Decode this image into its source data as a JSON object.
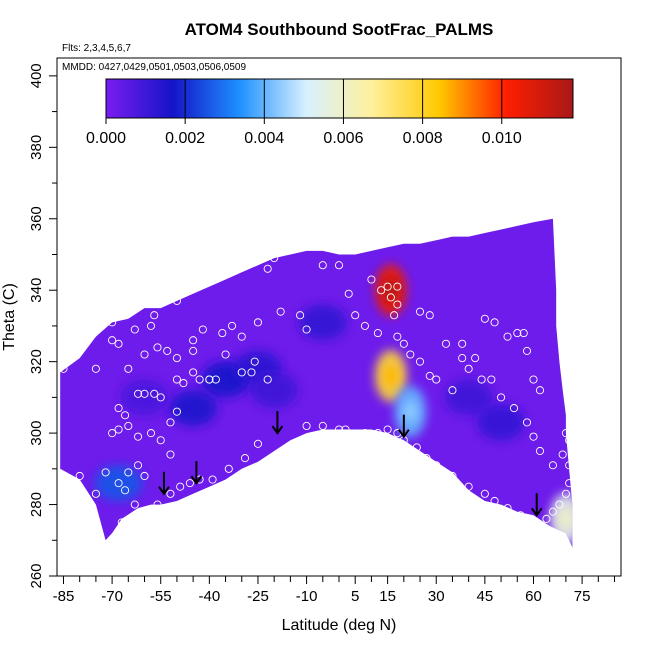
{
  "chart_data": {
    "type": "heatmap",
    "title": "ATOM4 Southbound SootFrac_PALMS",
    "annotations": [
      "Flts: 2,3,4,5,6,7",
      "MMDD: 0427,0429,0501,0503,0506,0509"
    ],
    "xlabel": "Latitude (deg N)",
    "ylabel": "Theta (C)",
    "xlim": [
      -87,
      87
    ],
    "ylim": [
      260,
      405
    ],
    "x_ticks": [
      -85,
      -70,
      -55,
      -40,
      -25,
      -10,
      5,
      15,
      30,
      45,
      60,
      75
    ],
    "x_tick_labels": [
      "-85",
      "-70",
      "-55",
      "-40",
      "-25",
      "-10",
      "5",
      "15",
      "30",
      "45",
      "60",
      "75"
    ],
    "y_ticks": [
      260,
      280,
      300,
      320,
      340,
      360,
      380,
      400
    ],
    "y_tick_labels": [
      "260",
      "280",
      "300",
      "320",
      "340",
      "360",
      "380",
      "400"
    ],
    "grid": false,
    "colorbar": {
      "range": [
        0,
        0.0118
      ],
      "ticks": [
        0.0,
        0.002,
        0.004,
        0.006,
        0.008,
        0.01
      ],
      "tick_labels": [
        "0.000",
        "0.002",
        "0.004",
        "0.006",
        "0.008",
        "0.010"
      ],
      "placement": "top",
      "colors": [
        "#7a1df0",
        "#1414c8",
        "#1e90ff",
        "#d8f0ff",
        "#fff09a",
        "#ffc800",
        "#ff1e00",
        "#a81818"
      ]
    },
    "background_value": 0.0002,
    "top_boundary": [
      [
        -86,
        317
      ],
      [
        -80,
        321
      ],
      [
        -75,
        327
      ],
      [
        -70,
        331
      ],
      [
        -65,
        332
      ],
      [
        -60,
        335
      ],
      [
        -55,
        335
      ],
      [
        -50,
        337
      ],
      [
        -45,
        339
      ],
      [
        -40,
        341
      ],
      [
        -35,
        343
      ],
      [
        -30,
        345
      ],
      [
        -25,
        347
      ],
      [
        -20,
        349
      ],
      [
        -15,
        350
      ],
      [
        -10,
        351
      ],
      [
        -5,
        351
      ],
      [
        0,
        350
      ],
      [
        5,
        350
      ],
      [
        10,
        351
      ],
      [
        15,
        352
      ],
      [
        20,
        353
      ],
      [
        25,
        353
      ],
      [
        30,
        354
      ],
      [
        35,
        355
      ],
      [
        40,
        355
      ],
      [
        45,
        356
      ],
      [
        50,
        357
      ],
      [
        55,
        358
      ],
      [
        60,
        359
      ],
      [
        66,
        360
      ],
      [
        67,
        340
      ],
      [
        67,
        330
      ],
      [
        68,
        320
      ],
      [
        69,
        312
      ],
      [
        70,
        305
      ],
      [
        70,
        300
      ],
      [
        71,
        290
      ],
      [
        72,
        280
      ],
      [
        72,
        276
      ],
      [
        72,
        268
      ]
    ],
    "bottom_boundary": [
      [
        -86,
        290
      ],
      [
        -80,
        287
      ],
      [
        -75,
        280
      ],
      [
        -72,
        270
      ],
      [
        -70,
        272
      ],
      [
        -67,
        276
      ],
      [
        -62,
        279
      ],
      [
        -58,
        280
      ],
      [
        -55,
        280
      ],
      [
        -50,
        281
      ],
      [
        -45,
        283
      ],
      [
        -40,
        285
      ],
      [
        -35,
        287
      ],
      [
        -30,
        290
      ],
      [
        -25,
        292
      ],
      [
        -20,
        295
      ],
      [
        -15,
        298
      ],
      [
        -10,
        300
      ],
      [
        -5,
        301
      ],
      [
        0,
        301
      ],
      [
        5,
        301
      ],
      [
        10,
        301
      ],
      [
        15,
        300
      ],
      [
        20,
        298
      ],
      [
        25,
        295
      ],
      [
        30,
        292
      ],
      [
        35,
        289
      ],
      [
        40,
        284
      ],
      [
        45,
        281
      ],
      [
        50,
        280
      ],
      [
        55,
        278
      ],
      [
        60,
        277
      ],
      [
        65,
        274
      ],
      [
        70,
        272
      ],
      [
        72,
        268
      ]
    ],
    "hotspots": [
      {
        "x": 16,
        "y": 340,
        "value": 0.0105
      },
      {
        "x": 16,
        "y": 316,
        "value": 0.0078
      },
      {
        "x": 22,
        "y": 306,
        "value": 0.004
      },
      {
        "x": 70,
        "y": 276,
        "value": 0.0055
      },
      {
        "x": -35,
        "y": 315,
        "value": 0.0016
      },
      {
        "x": -45,
        "y": 307,
        "value": 0.0015
      },
      {
        "x": -68,
        "y": 286,
        "value": 0.0026
      },
      {
        "x": -25,
        "y": 318,
        "value": 0.0013
      },
      {
        "x": -20,
        "y": 312,
        "value": 0.001
      },
      {
        "x": 40,
        "y": 310,
        "value": 0.001
      },
      {
        "x": 50,
        "y": 303,
        "value": 0.0012
      },
      {
        "x": -5,
        "y": 331,
        "value": 0.0012
      },
      {
        "x": -60,
        "y": 310,
        "value": 0.0008
      }
    ],
    "samples": [
      [
        -85,
        318
      ],
      [
        -75,
        318
      ],
      [
        -70,
        331
      ],
      [
        -70,
        326
      ],
      [
        -68,
        325
      ],
      [
        -63,
        329
      ],
      [
        -58,
        330
      ],
      [
        -57,
        333
      ],
      [
        -50,
        337
      ],
      [
        -45,
        326
      ],
      [
        -42,
        329
      ],
      [
        -36,
        328
      ],
      [
        -33,
        330
      ],
      [
        -30,
        327
      ],
      [
        -25,
        331
      ],
      [
        -20,
        349
      ],
      [
        -22,
        346
      ],
      [
        -65,
        318
      ],
      [
        -60,
        322
      ],
      [
        -56,
        324
      ],
      [
        -53,
        323
      ],
      [
        -50,
        321
      ],
      [
        -45,
        323
      ],
      [
        -40,
        315
      ],
      [
        -38,
        315
      ],
      [
        -35,
        322
      ],
      [
        -30,
        317
      ],
      [
        -27,
        317
      ],
      [
        -22,
        315
      ],
      [
        -26,
        320
      ],
      [
        -68,
        307
      ],
      [
        -66,
        305
      ],
      [
        -62,
        311
      ],
      [
        -60,
        311
      ],
      [
        -57,
        311
      ],
      [
        -55,
        310
      ],
      [
        -50,
        315
      ],
      [
        -48,
        314
      ],
      [
        -45,
        317
      ],
      [
        -43,
        315
      ],
      [
        -40,
        315
      ],
      [
        -52,
        303
      ],
      [
        -50,
        306
      ],
      [
        -70,
        300
      ],
      [
        -68,
        301
      ],
      [
        -65,
        302
      ],
      [
        -62,
        299
      ],
      [
        -58,
        300
      ],
      [
        -55,
        298
      ],
      [
        -52,
        294
      ],
      [
        -72,
        289
      ],
      [
        -68,
        286
      ],
      [
        -66,
        284
      ],
      [
        -63,
        280
      ],
      [
        -60,
        278
      ],
      [
        -56,
        280
      ],
      [
        -52,
        283
      ],
      [
        -49,
        285
      ],
      [
        -46,
        286
      ],
      [
        -43,
        287
      ],
      [
        -39,
        287
      ],
      [
        -34,
        290
      ],
      [
        -29,
        293
      ],
      [
        -25,
        297
      ],
      [
        -60,
        288
      ],
      [
        -62,
        291
      ],
      [
        -65,
        289
      ],
      [
        -67,
        275
      ],
      [
        -70,
        270
      ],
      [
        -75,
        283
      ],
      [
        -80,
        288
      ],
      [
        -18,
        334
      ],
      [
        -12,
        333
      ],
      [
        -10,
        329
      ],
      [
        -5,
        347
      ],
      [
        0,
        347
      ],
      [
        3,
        339
      ],
      [
        5,
        333
      ],
      [
        8,
        330
      ],
      [
        12,
        328
      ],
      [
        17,
        333
      ],
      [
        18,
        327
      ],
      [
        20,
        325
      ],
      [
        22,
        322
      ],
      [
        25,
        320
      ],
      [
        28,
        316
      ],
      [
        30,
        315
      ],
      [
        35,
        312
      ],
      [
        38,
        325
      ],
      [
        42,
        321
      ],
      [
        45,
        332
      ],
      [
        48,
        331
      ],
      [
        52,
        327
      ],
      [
        55,
        328
      ],
      [
        57,
        328
      ],
      [
        58,
        323
      ],
      [
        60,
        315
      ],
      [
        62,
        312
      ],
      [
        -10,
        302
      ],
      [
        -5,
        302
      ],
      [
        0,
        301
      ],
      [
        2,
        301
      ],
      [
        8,
        300
      ],
      [
        12,
        300
      ],
      [
        15,
        301
      ],
      [
        18,
        300
      ],
      [
        20,
        298
      ],
      [
        24,
        296
      ],
      [
        27,
        293
      ],
      [
        30,
        291
      ],
      [
        35,
        288
      ],
      [
        40,
        285
      ],
      [
        45,
        283
      ],
      [
        48,
        281
      ],
      [
        52,
        279
      ],
      [
        56,
        277
      ],
      [
        58,
        276
      ],
      [
        62,
        274
      ],
      [
        64,
        276
      ],
      [
        66,
        278
      ],
      [
        68,
        280
      ],
      [
        70,
        283
      ],
      [
        71,
        286
      ],
      [
        71,
        291
      ],
      [
        71,
        298
      ],
      [
        10,
        343
      ],
      [
        13,
        340
      ],
      [
        15,
        341
      ],
      [
        16,
        338
      ],
      [
        18,
        341
      ],
      [
        18,
        336
      ],
      [
        25,
        334
      ],
      [
        28,
        333
      ],
      [
        33,
        325
      ],
      [
        38,
        321
      ],
      [
        40,
        318
      ],
      [
        44,
        315
      ],
      [
        47,
        315
      ],
      [
        50,
        310
      ],
      [
        54,
        307
      ],
      [
        58,
        303
      ],
      [
        60,
        299
      ],
      [
        62,
        295
      ],
      [
        66,
        291
      ],
      [
        69,
        294
      ],
      [
        70,
        300
      ]
    ],
    "markers": [
      {
        "x": -54,
        "y": 283
      },
      {
        "x": -44,
        "y": 286
      },
      {
        "x": -19,
        "y": 300
      },
      {
        "x": 20,
        "y": 299
      },
      {
        "x": 61,
        "y": 277
      }
    ]
  }
}
